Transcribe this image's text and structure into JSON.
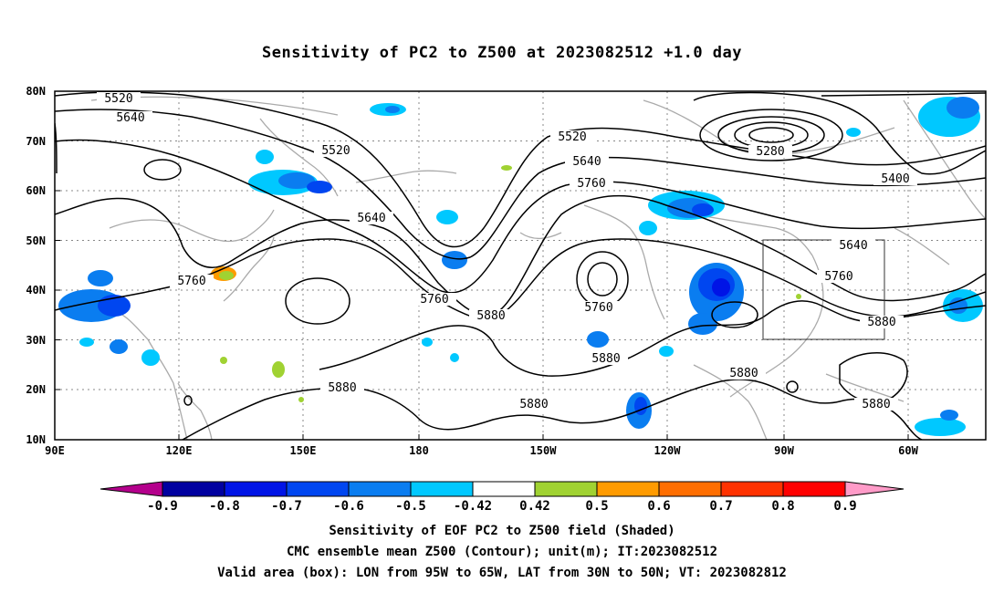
{
  "title": "Sensitivity of PC2 to Z500 at 2023082512 +1.0 day",
  "lat_labels": [
    "80N",
    "70N",
    "60N",
    "50N",
    "40N",
    "30N",
    "20N",
    "10N"
  ],
  "lon_labels": [
    "90E",
    "120E",
    "150E",
    "180",
    "150W",
    "120W",
    "90W",
    "60W"
  ],
  "contour_labels": [
    "5520",
    "5640",
    "5520",
    "5640",
    "5760",
    "5520",
    "5640",
    "5760",
    "5280",
    "5400",
    "5640",
    "5760",
    "5760",
    "5760",
    "5880",
    "5880",
    "5880",
    "5880",
    "5880",
    "5880",
    "5880"
  ],
  "colorbar": {
    "labels": [
      "-0.9",
      "-0.8",
      "-0.7",
      "-0.6",
      "-0.5",
      "-0.42",
      "0.42",
      "0.5",
      "0.6",
      "0.7",
      "0.8",
      "0.9"
    ],
    "colors": [
      "#b4008c",
      "#0000a0",
      "#0014e6",
      "#0046f0",
      "#0a7df0",
      "#00c8ff",
      "#ffffff",
      "#a0d232",
      "#ff9b00",
      "#ff6e00",
      "#ff3200",
      "#ff0000",
      "#ff9bc8"
    ]
  },
  "captions": {
    "line1": "Sensitivity of EOF PC2 to Z500 field (Shaded)",
    "line2": "CMC ensemble mean Z500 (Contour); unit(m); IT:2023082512",
    "line3": "Valid area (box): LON from 95W to 65W, LAT from 30N to 50N; VT: 2023082812"
  }
}
